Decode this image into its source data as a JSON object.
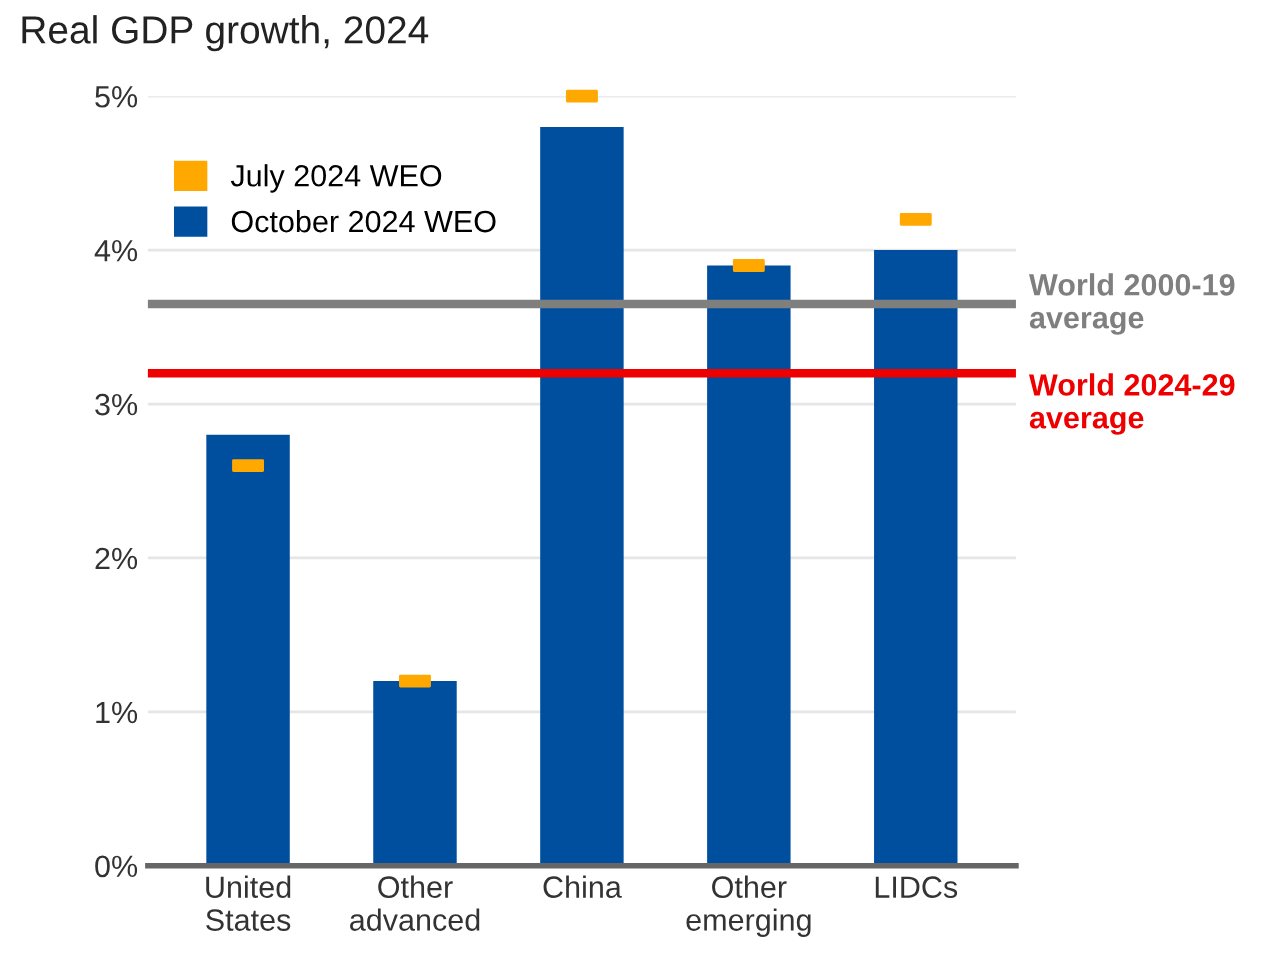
{
  "chart_data": {
    "type": "bar",
    "title": "Real GDP growth, 2024",
    "categories": [
      "United\nStates",
      "Other\nadvanced",
      "China",
      "Other\nemerging",
      "LIDCs"
    ],
    "series": [
      {
        "name": "October 2024 WEO",
        "color": "#004f9f",
        "values": [
          2.8,
          1.2,
          4.8,
          3.9,
          4.0
        ]
      },
      {
        "name": "July 2024 WEO",
        "type": "scatter",
        "marker": "square",
        "color": "#ffa800",
        "values": [
          2.6,
          1.2,
          5.0,
          3.9,
          4.2
        ]
      }
    ],
    "ylim": [
      0,
      5
    ],
    "yticks": [
      {
        "value": 0,
        "label": "0%"
      },
      {
        "value": 1,
        "label": "1%"
      },
      {
        "value": 2,
        "label": "2%"
      },
      {
        "value": 3,
        "label": "3%"
      },
      {
        "value": 4,
        "label": "4%"
      },
      {
        "value": 5,
        "label": "5%"
      }
    ],
    "ref_lines": [
      {
        "axis": "y",
        "value": 3.65,
        "label": "World 2000-19\naverage",
        "color": "#7f7f7f"
      },
      {
        "axis": "y",
        "value": 3.2,
        "label": "World 2024-29\naverage",
        "color": "#ee0000"
      }
    ],
    "grid": "y",
    "legend": "top left"
  }
}
